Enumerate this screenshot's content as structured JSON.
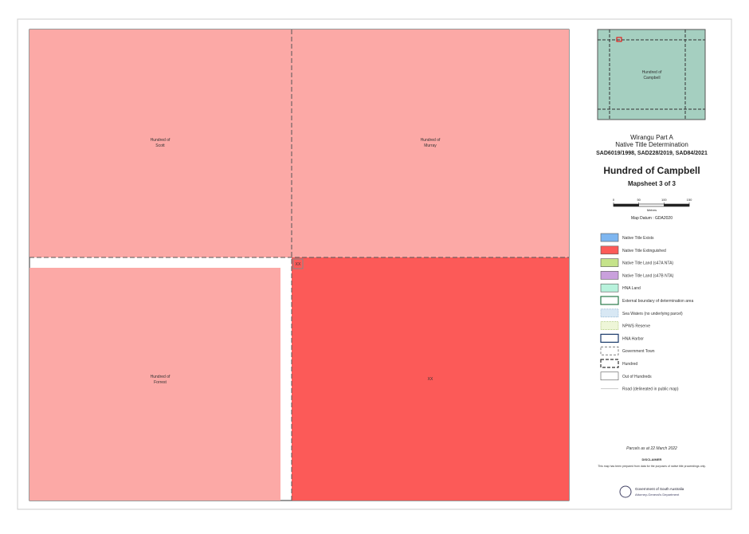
{
  "map": {
    "labels": [
      {
        "name": "Hundred of",
        "sub": "Scott"
      },
      {
        "name": "Hundred of",
        "sub": "Murray"
      },
      {
        "name": "Hundred of",
        "sub": "Forrest"
      },
      {
        "name": "Hundred of",
        "sub": "Campbell"
      }
    ],
    "parcel_label": "XX"
  },
  "title_block": {
    "project": "Wirangu Part A",
    "subtitle": "Native Title Determination",
    "case_numbers": "SAD6019/1998, SAD228/2019, SAD84/2021",
    "title": "Hundred of Campbell",
    "mapsheet": "Mapsheet 3 of 3",
    "scale": {
      "ticks": [
        0,
        50,
        100,
        150
      ],
      "unit": "Metres"
    },
    "datum": "Map Datum : GDA2020"
  },
  "legend": [
    "Native Title Exists",
    "Native Title Extinguished",
    "Native Title Land (s47A NTA)",
    "Native Title Land (s47B NTA)",
    "HNA Land",
    "External boundary of determination area",
    "Sea Waters (no underlying parcel)",
    "NPWS Reserve",
    "HNA Harbor",
    "Government Town",
    "Hundred",
    "Out of Hundreds",
    "Road (delineated in public map)"
  ],
  "footer": {
    "parcels": "Parcels as at 22 March 2022",
    "disclaimer_title": "DISCLAIMER",
    "disclaimer": "This map has been prepared from data for the purposes of native title proceedings only.",
    "org": "Government of South Australia",
    "dept": "Attorney-General's Department"
  }
}
